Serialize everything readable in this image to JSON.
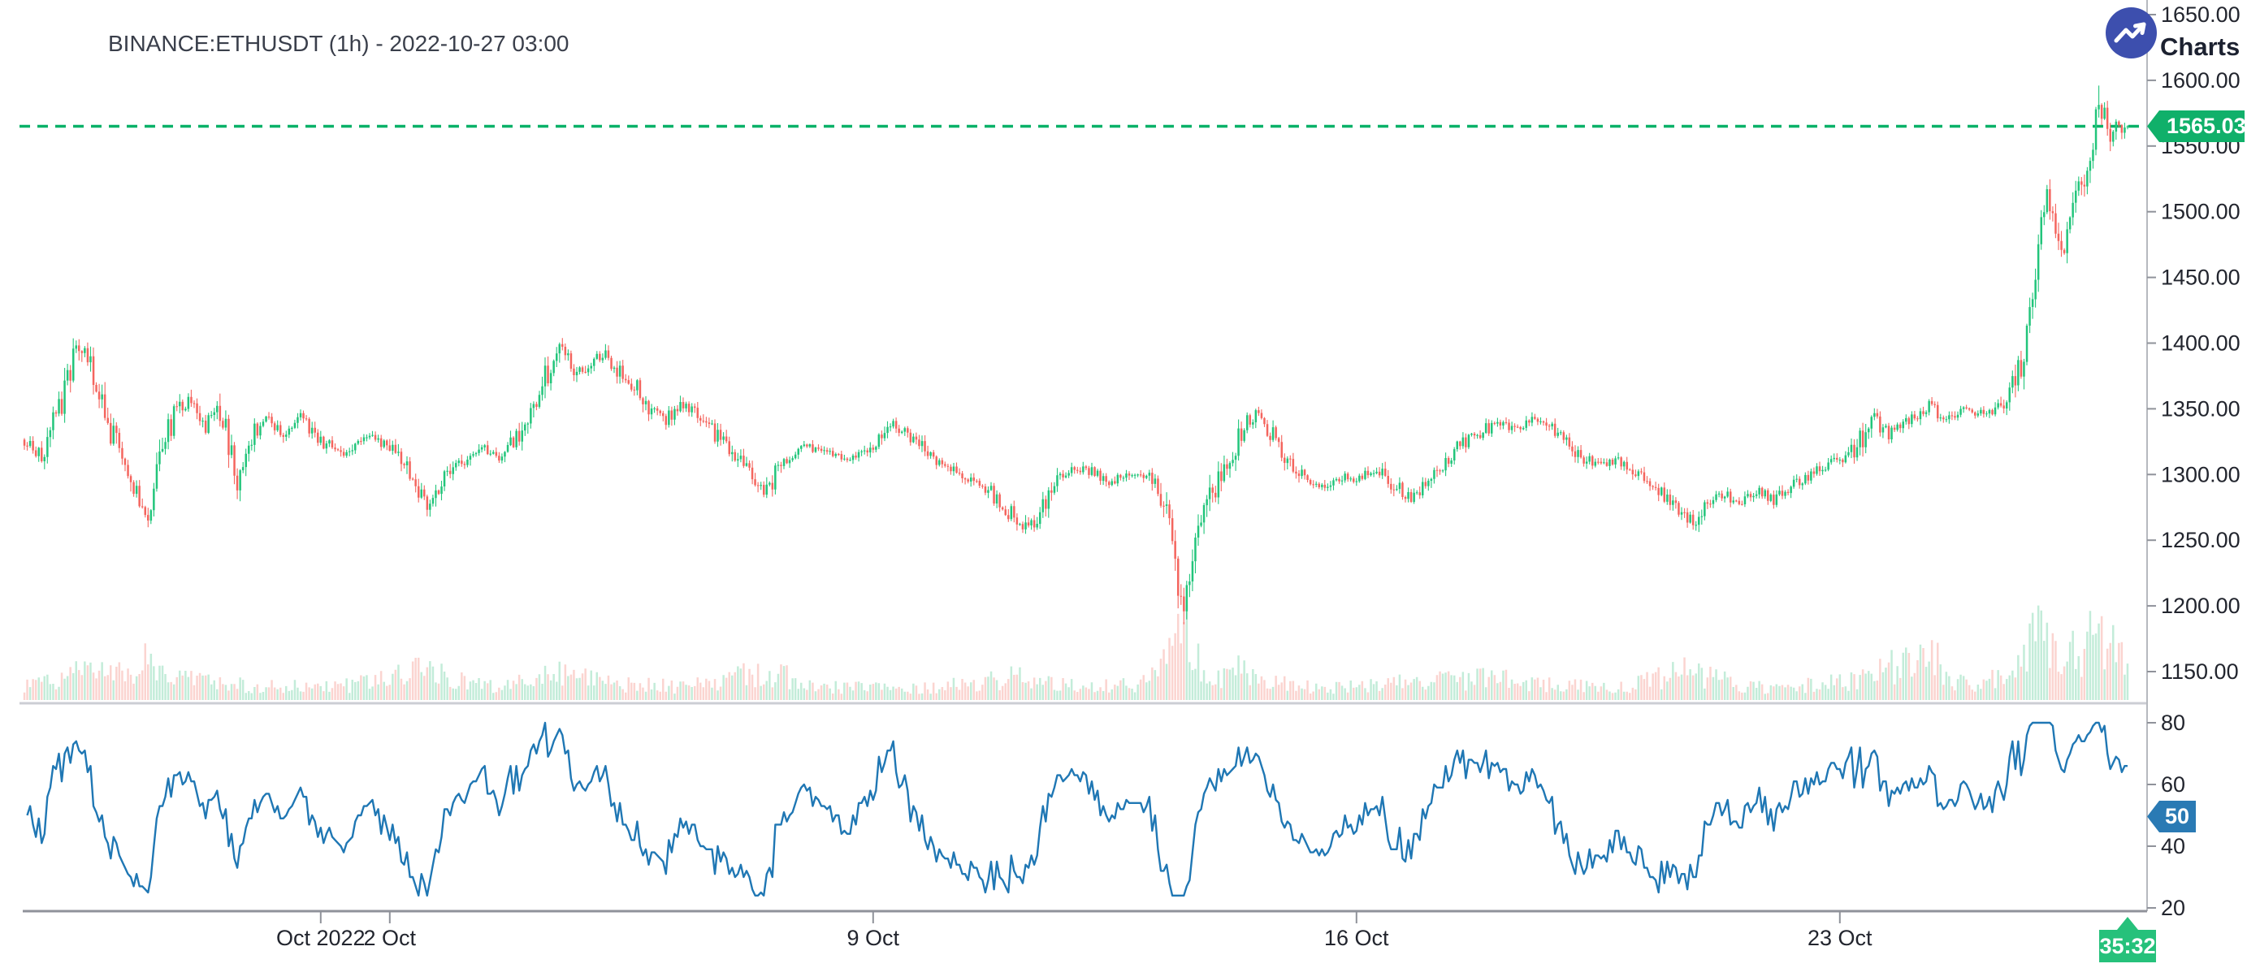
{
  "header": {
    "title": "BINANCE:ETHUSDT (1h) - 2022-10-27 03:00"
  },
  "branding": {
    "caption": "Charts p",
    "logo": "trend-up-logo"
  },
  "colors": {
    "up": "#22c57b",
    "down": "#f4655e",
    "volume_up": "#c3ecd9",
    "volume_down": "#fbd4d0",
    "price_line": "#07b168",
    "price_tag_bg": "#10b06a",
    "countdown_bg": "#26c17b",
    "rsi_line": "#1f77b4",
    "rsi_tag_bg": "#2a7ab4",
    "logo_bg": "#3d4fae",
    "axis_text": "#22252e",
    "title_text": "#3a3f4b",
    "spine": "#8f929a",
    "right_spine": "#b6b9bf",
    "separator": "#ccced4"
  },
  "chart_data": {
    "type": "candlestick",
    "symbol": "BINANCE:ETHUSDT",
    "interval": "1h",
    "as_of": "2022-10-27 03:00",
    "last_price": 1565.03,
    "countdown": "35:32",
    "panels": [
      "price+volume",
      "rsi"
    ],
    "legend_position": "none",
    "grid": false,
    "time_range": [
      "2022-09-26 17:00",
      "2022-10-27 03:00"
    ],
    "hours_total": 731,
    "price_axis_range": [
      1126,
      1660
    ],
    "price_ticks": [
      "1650.00",
      "1600.00",
      "1550.00",
      "1500.00",
      "1450.00",
      "1400.00",
      "1350.00",
      "1300.00",
      "1250.00",
      "1200.00",
      "1150.00"
    ],
    "time_ticks": [
      {
        "label": "Oct 2022",
        "hour": 103
      },
      {
        "label": "2 Oct",
        "hour": 127
      },
      {
        "label": "9 Oct",
        "hour": 295
      },
      {
        "label": "16 Oct",
        "hour": 463
      },
      {
        "label": "23 Oct",
        "hour": 631
      }
    ],
    "rsi": {
      "period": 14,
      "ticks": [
        "80",
        "60",
        "40",
        "20"
      ],
      "last_label": "50",
      "range": [
        20,
        80
      ]
    },
    "price_keypoints": [
      [
        0,
        1325
      ],
      [
        6,
        1315
      ],
      [
        10,
        1338
      ],
      [
        14,
        1360
      ],
      [
        19,
        1400
      ],
      [
        23,
        1385
      ],
      [
        27,
        1350
      ],
      [
        32,
        1322
      ],
      [
        38,
        1296
      ],
      [
        43,
        1264
      ],
      [
        47,
        1312
      ],
      [
        52,
        1345
      ],
      [
        58,
        1358
      ],
      [
        63,
        1338
      ],
      [
        68,
        1350
      ],
      [
        74,
        1300
      ],
      [
        78,
        1325
      ],
      [
        84,
        1342
      ],
      [
        90,
        1330
      ],
      [
        96,
        1342
      ],
      [
        103,
        1326
      ],
      [
        110,
        1316
      ],
      [
        118,
        1330
      ],
      [
        127,
        1322
      ],
      [
        134,
        1300
      ],
      [
        140,
        1276
      ],
      [
        146,
        1296
      ],
      [
        151,
        1308
      ],
      [
        158,
        1322
      ],
      [
        165,
        1315
      ],
      [
        172,
        1332
      ],
      [
        178,
        1356
      ],
      [
        182,
        1378
      ],
      [
        186,
        1395
      ],
      [
        192,
        1376
      ],
      [
        197,
        1386
      ],
      [
        202,
        1392
      ],
      [
        207,
        1378
      ],
      [
        212,
        1368
      ],
      [
        216,
        1352
      ],
      [
        223,
        1342
      ],
      [
        228,
        1356
      ],
      [
        236,
        1340
      ],
      [
        244,
        1322
      ],
      [
        252,
        1302
      ],
      [
        258,
        1288
      ],
      [
        264,
        1312
      ],
      [
        271,
        1322
      ],
      [
        280,
        1316
      ],
      [
        288,
        1312
      ],
      [
        295,
        1320
      ],
      [
        302,
        1336
      ],
      [
        310,
        1326
      ],
      [
        318,
        1310
      ],
      [
        326,
        1300
      ],
      [
        334,
        1290
      ],
      [
        343,
        1270
      ],
      [
        348,
        1258
      ],
      [
        354,
        1276
      ],
      [
        360,
        1298
      ],
      [
        368,
        1306
      ],
      [
        376,
        1294
      ],
      [
        384,
        1302
      ],
      [
        391,
        1296
      ],
      [
        396,
        1282
      ],
      [
        399,
        1256
      ],
      [
        401,
        1212
      ],
      [
        403,
        1190
      ],
      [
        405,
        1228
      ],
      [
        408,
        1252
      ],
      [
        412,
        1282
      ],
      [
        416,
        1302
      ],
      [
        420,
        1318
      ],
      [
        424,
        1338
      ],
      [
        428,
        1347
      ],
      [
        434,
        1330
      ],
      [
        440,
        1310
      ],
      [
        446,
        1296
      ],
      [
        452,
        1290
      ],
      [
        458,
        1298
      ],
      [
        463,
        1294
      ],
      [
        470,
        1306
      ],
      [
        476,
        1292
      ],
      [
        482,
        1281
      ],
      [
        488,
        1296
      ],
      [
        494,
        1312
      ],
      [
        500,
        1324
      ],
      [
        506,
        1331
      ],
      [
        512,
        1341
      ],
      [
        518,
        1334
      ],
      [
        524,
        1342
      ],
      [
        530,
        1337
      ],
      [
        536,
        1324
      ],
      [
        542,
        1312
      ],
      [
        548,
        1306
      ],
      [
        554,
        1311
      ],
      [
        560,
        1301
      ],
      [
        566,
        1291
      ],
      [
        572,
        1279
      ],
      [
        578,
        1268
      ],
      [
        581,
        1260
      ],
      [
        584,
        1281
      ],
      [
        590,
        1286
      ],
      [
        596,
        1278
      ],
      [
        602,
        1288
      ],
      [
        608,
        1281
      ],
      [
        614,
        1291
      ],
      [
        620,
        1298
      ],
      [
        626,
        1306
      ],
      [
        632,
        1312
      ],
      [
        637,
        1320
      ],
      [
        642,
        1345
      ],
      [
        648,
        1331
      ],
      [
        656,
        1341
      ],
      [
        662,
        1352
      ],
      [
        668,
        1343
      ],
      [
        674,
        1349
      ],
      [
        680,
        1346
      ],
      [
        686,
        1352
      ],
      [
        690,
        1362
      ],
      [
        694,
        1382
      ],
      [
        697,
        1422
      ],
      [
        700,
        1472
      ],
      [
        703,
        1521
      ],
      [
        706,
        1492
      ],
      [
        709,
        1471
      ],
      [
        712,
        1501
      ],
      [
        715,
        1522
      ],
      [
        718,
        1543
      ],
      [
        721,
        1585
      ],
      [
        723,
        1575
      ],
      [
        725,
        1556
      ],
      [
        727,
        1576
      ],
      [
        729,
        1556
      ],
      [
        731,
        1565.03
      ]
    ],
    "volume_profile": [
      [
        0,
        26
      ],
      [
        14,
        30
      ],
      [
        19,
        45
      ],
      [
        38,
        50
      ],
      [
        43,
        68
      ],
      [
        50,
        34
      ],
      [
        70,
        24
      ],
      [
        100,
        20
      ],
      [
        118,
        26
      ],
      [
        140,
        48
      ],
      [
        160,
        22
      ],
      [
        186,
        40
      ],
      [
        205,
        26
      ],
      [
        230,
        20
      ],
      [
        258,
        46
      ],
      [
        280,
        20
      ],
      [
        300,
        18
      ],
      [
        326,
        24
      ],
      [
        343,
        36
      ],
      [
        370,
        20
      ],
      [
        390,
        26
      ],
      [
        398,
        70
      ],
      [
        401,
        110
      ],
      [
        403,
        152
      ],
      [
        406,
        90
      ],
      [
        410,
        48
      ],
      [
        416,
        34
      ],
      [
        421,
        60
      ],
      [
        430,
        28
      ],
      [
        450,
        20
      ],
      [
        470,
        24
      ],
      [
        490,
        30
      ],
      [
        510,
        34
      ],
      [
        530,
        24
      ],
      [
        554,
        20
      ],
      [
        578,
        46
      ],
      [
        600,
        20
      ],
      [
        620,
        24
      ],
      [
        640,
        32
      ],
      [
        663,
        82
      ],
      [
        668,
        30
      ],
      [
        680,
        26
      ],
      [
        690,
        40
      ],
      [
        695,
        70
      ],
      [
        698,
        95
      ],
      [
        700,
        122
      ],
      [
        703,
        100
      ],
      [
        706,
        70
      ],
      [
        709,
        55
      ],
      [
        712,
        72
      ],
      [
        715,
        60
      ],
      [
        718,
        92
      ],
      [
        721,
        80
      ],
      [
        724,
        105
      ],
      [
        727,
        70
      ],
      [
        731,
        58
      ]
    ]
  }
}
